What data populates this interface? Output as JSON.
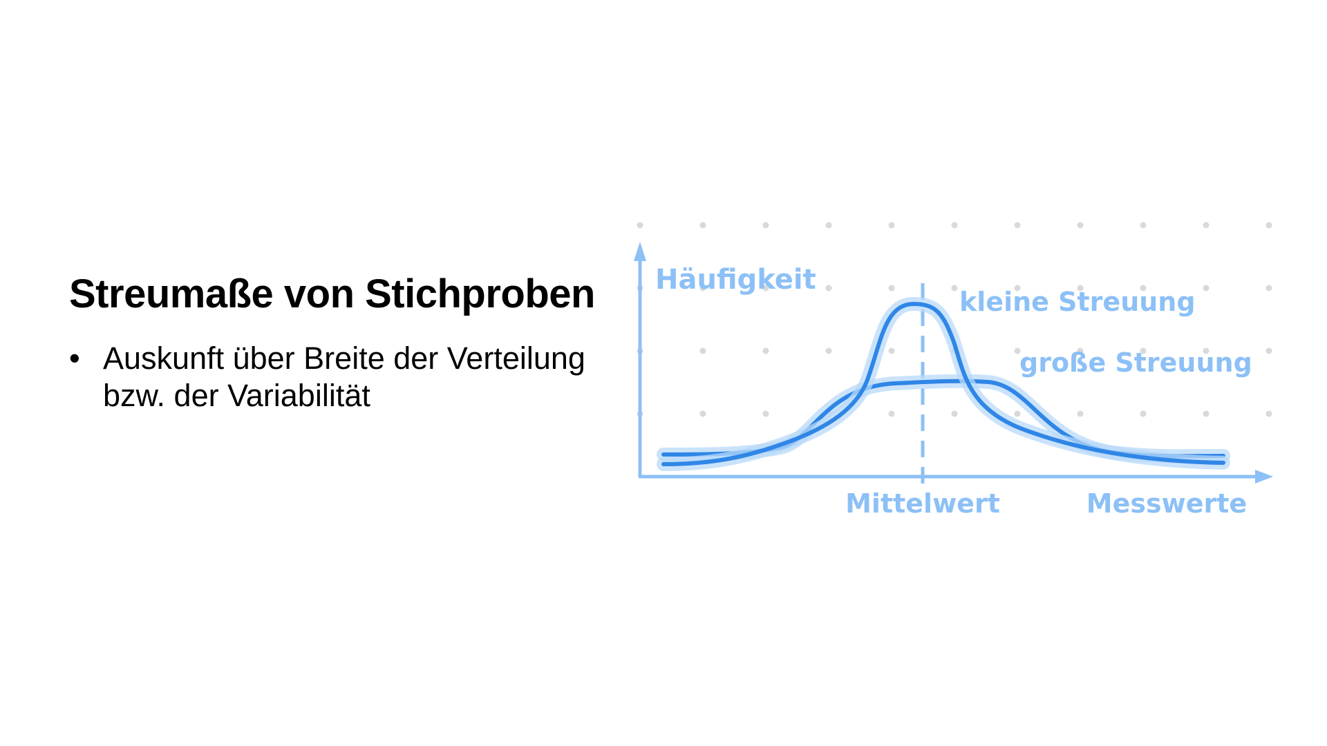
{
  "slide": {
    "title": "Streumaße von Stichproben",
    "bullets": [
      {
        "symbol": "•",
        "text": "Auskunft über Breite der Verteilung bzw. der Variabilität"
      }
    ]
  },
  "diagram": {
    "y_axis_label": "Häufigkeit",
    "x_axis_label": "Messwerte",
    "mean_label": "Mittelwert",
    "curve_narrow_label": "kleine Streuung",
    "curve_wide_label": "große Streuung",
    "colors": {
      "axis": "#8cc0f6",
      "curve": "#2f86e6",
      "curve_glow": "#b8dafa",
      "grid_dot": "#d9d9d9",
      "label": "#8cc0f6"
    }
  }
}
